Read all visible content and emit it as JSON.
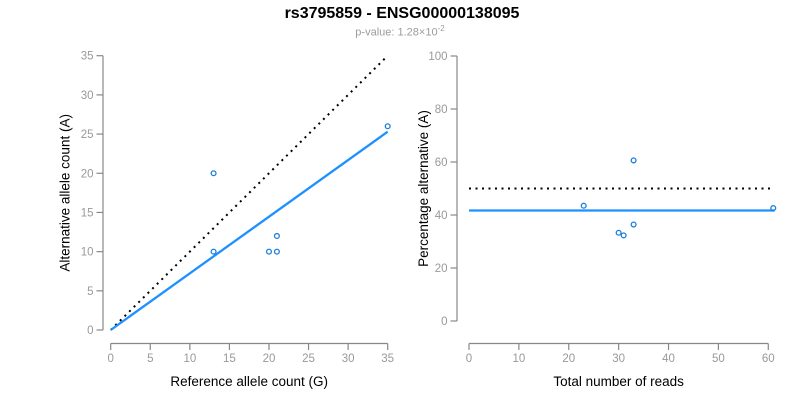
{
  "header": {
    "title": "rs3795859 - ENSG00000138095",
    "pvalue_prefix": "p-value: 1.28×10",
    "pvalue_exponent": "-2"
  },
  "colors": {
    "fit_line": "#1E90FF",
    "point_stroke": "#1E7FD9",
    "identity_line": "#000000",
    "axis_line": "#888888",
    "tick_label": "#999999",
    "axis_title": "#000000",
    "subtitle": "#9b9b9b",
    "background": "#ffffff"
  },
  "chart_data": [
    {
      "type": "scatter",
      "name": "allele-count-scatter",
      "title": "",
      "xlabel": "Reference allele count (G)",
      "ylabel": "Alternative allele count (A)",
      "xlim": [
        0,
        35
      ],
      "ylim": [
        0,
        35
      ],
      "xticks": [
        0,
        5,
        10,
        15,
        20,
        25,
        30,
        35
      ],
      "yticks": [
        0,
        5,
        10,
        15,
        20,
        25,
        30,
        35
      ],
      "grid": false,
      "legend": null,
      "points": [
        {
          "x": 13,
          "y": 20
        },
        {
          "x": 13,
          "y": 10
        },
        {
          "x": 20,
          "y": 10
        },
        {
          "x": 21,
          "y": 10
        },
        {
          "x": 21,
          "y": 12
        },
        {
          "x": 35,
          "y": 26
        }
      ],
      "lines": [
        {
          "name": "expected-50pct-line",
          "style": "dotted",
          "color": "#000000",
          "x1": 0,
          "y1": 0,
          "x2": 35,
          "y2": 35
        },
        {
          "name": "fitted-ratio-line",
          "style": "solid",
          "color": "#1E90FF",
          "x1": 0,
          "y1": 0,
          "x2": 35,
          "y2": 25.3
        }
      ]
    },
    {
      "type": "scatter",
      "name": "percentage-vs-reads-scatter",
      "title": "",
      "xlabel": "Total number of reads",
      "ylabel": "Percentage alternative (A)",
      "xlim": [
        0,
        62
      ],
      "ylim": [
        0,
        100
      ],
      "xticks": [
        0,
        10,
        20,
        30,
        40,
        50,
        60
      ],
      "yticks": [
        0,
        20,
        40,
        60,
        80,
        100
      ],
      "grid": false,
      "legend": null,
      "points": [
        {
          "x": 23,
          "y": 43.5
        },
        {
          "x": 30,
          "y": 33.3
        },
        {
          "x": 31,
          "y": 32.3
        },
        {
          "x": 33,
          "y": 36.4
        },
        {
          "x": 33,
          "y": 60.6
        },
        {
          "x": 61,
          "y": 42.6
        }
      ],
      "lines": [
        {
          "name": "expected-50pct-line",
          "style": "dotted",
          "color": "#000000",
          "x1": 0,
          "y1": 50,
          "x2": 60.4,
          "y2": 50
        },
        {
          "name": "mean-percentage-line",
          "style": "solid",
          "color": "#1E90FF",
          "x1": 0,
          "y1": 41.7,
          "x2": 61.3,
          "y2": 41.7
        }
      ]
    }
  ]
}
